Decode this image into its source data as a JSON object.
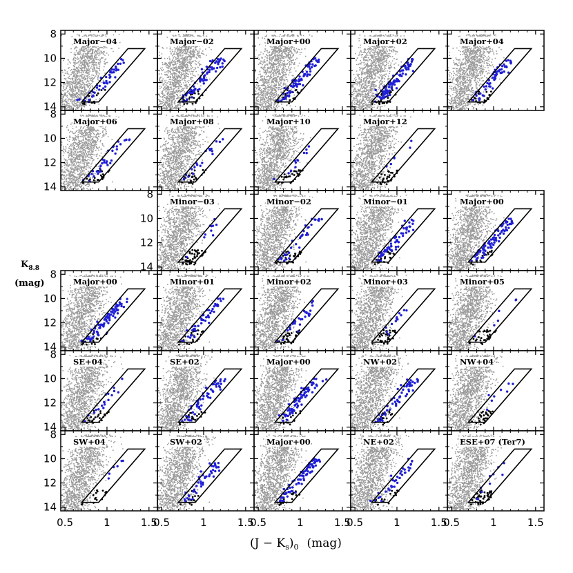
{
  "chart_data": {
    "type": "scatter",
    "description_axes": {
      "xlabel": "(J − K",
      "xlabel_sub": "s",
      "xlabel_tail": ")",
      "xlabel_sub2": "0",
      "xlabel_units": "(mag)",
      "ylabel": "K",
      "ylabel_sub": "8.8",
      "ylabel_units": "(mag)"
    },
    "xlim": [
      0.45,
      1.6
    ],
    "ylim": [
      14.3,
      7.7
    ],
    "xticks": [
      0.5,
      1,
      1.5
    ],
    "xtick_labels": [
      "0.5",
      "1",
      "1.5"
    ],
    "yticks": [
      8,
      10,
      12,
      14
    ],
    "ytick_labels": [
      "8",
      "10",
      "12",
      "14"
    ],
    "selection_box": [
      [
        0.7,
        13.6
      ],
      [
        0.9,
        13.6
      ],
      [
        1.45,
        9.2
      ],
      [
        1.25,
        9.2
      ]
    ],
    "colors": {
      "field": "#9a9a9a",
      "member": "#1f1fd6",
      "nonmember": "#000000",
      "box": "#000000"
    },
    "panels": [
      {
        "label": "Major−04",
        "row": 0,
        "col": 0,
        "yticks": true,
        "members": 45,
        "nonmembers": 15
      },
      {
        "label": "Major−02",
        "row": 0,
        "col": 1,
        "yticks": false,
        "members": 70,
        "nonmembers": 25
      },
      {
        "label": "Major+00",
        "row": 0,
        "col": 2,
        "yticks": false,
        "members": 75,
        "nonmembers": 20
      },
      {
        "label": "Major+02",
        "row": 0,
        "col": 3,
        "yticks": false,
        "members": 90,
        "nonmembers": 25
      },
      {
        "label": "Major+04",
        "row": 0,
        "col": 4,
        "yticks": false,
        "members": 55,
        "nonmembers": 20
      },
      {
        "label": "Major+06",
        "row": 1,
        "col": 0,
        "yticks": true,
        "members": 35,
        "nonmembers": 25
      },
      {
        "label": "Major+08",
        "row": 1,
        "col": 1,
        "yticks": false,
        "members": 20,
        "nonmembers": 25
      },
      {
        "label": "Major+10",
        "row": 1,
        "col": 2,
        "yticks": false,
        "members": 12,
        "nonmembers": 30
      },
      {
        "label": "Major+12",
        "row": 1,
        "col": 3,
        "yticks": false,
        "members": 6,
        "nonmembers": 30
      },
      {
        "label": "Minor−03",
        "row": 2,
        "col": 1,
        "yticks": true,
        "members": 10,
        "nonmembers": 45
      },
      {
        "label": "Minor−02",
        "row": 2,
        "col": 2,
        "yticks": false,
        "members": 35,
        "nonmembers": 30
      },
      {
        "label": "Minor−01",
        "row": 2,
        "col": 3,
        "yticks": false,
        "members": 55,
        "nonmembers": 20
      },
      {
        "label": "Major+00",
        "row": 2,
        "col": 4,
        "yticks": false,
        "members": 80,
        "nonmembers": 15
      },
      {
        "label": "Major+00",
        "row": 3,
        "col": 0,
        "yticks": true,
        "members": 80,
        "nonmembers": 15
      },
      {
        "label": "Minor+01",
        "row": 3,
        "col": 1,
        "yticks": false,
        "members": 45,
        "nonmembers": 25
      },
      {
        "label": "Minor+02",
        "row": 3,
        "col": 2,
        "yticks": false,
        "members": 30,
        "nonmembers": 35
      },
      {
        "label": "Minor+03",
        "row": 3,
        "col": 3,
        "yticks": false,
        "members": 12,
        "nonmembers": 35
      },
      {
        "label": "Minor+05",
        "row": 3,
        "col": 4,
        "yticks": false,
        "members": 6,
        "nonmembers": 30
      },
      {
        "label": "SE+04",
        "row": 4,
        "col": 0,
        "yticks": true,
        "members": 18,
        "nonmembers": 25
      },
      {
        "label": "SE+02",
        "row": 4,
        "col": 1,
        "yticks": false,
        "members": 55,
        "nonmembers": 20
      },
      {
        "label": "Major+00",
        "row": 4,
        "col": 2,
        "yticks": false,
        "members": 75,
        "nonmembers": 15
      },
      {
        "label": "NW+02",
        "row": 4,
        "col": 3,
        "yticks": false,
        "members": 55,
        "nonmembers": 20
      },
      {
        "label": "NW+04",
        "row": 4,
        "col": 4,
        "yticks": false,
        "members": 8,
        "nonmembers": 30
      },
      {
        "label": "SW+04",
        "row": 5,
        "col": 0,
        "yticks": true,
        "members": 6,
        "nonmembers": 15
      },
      {
        "label": "SW+02",
        "row": 5,
        "col": 1,
        "yticks": false,
        "members": 45,
        "nonmembers": 15
      },
      {
        "label": "Major+00",
        "row": 5,
        "col": 2,
        "yticks": false,
        "members": 75,
        "nonmembers": 15
      },
      {
        "label": "NE+02",
        "row": 5,
        "col": 3,
        "yticks": false,
        "members": 35,
        "nonmembers": 15
      },
      {
        "label": "ESE+07 (Ter7)",
        "row": 5,
        "col": 4,
        "yticks": false,
        "members": 10,
        "nonmembers": 45
      }
    ],
    "bottom_xtick_columns": [
      0,
      1,
      2,
      3,
      4
    ]
  }
}
